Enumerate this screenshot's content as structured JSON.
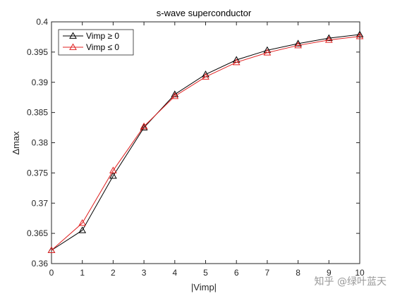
{
  "chart_data": {
    "type": "line",
    "title": "s-wave superconductor",
    "xlabel": "|Vimp|",
    "ylabel": "Δmax",
    "xlim": [
      0,
      10
    ],
    "ylim": [
      0.36,
      0.4
    ],
    "xticks": [
      0,
      1,
      2,
      3,
      4,
      5,
      6,
      7,
      8,
      9,
      10
    ],
    "yticks": [
      0.36,
      0.365,
      0.37,
      0.375,
      0.38,
      0.385,
      0.39,
      0.395,
      0.4
    ],
    "ytick_labels": [
      "0.36",
      "0.365",
      "0.37",
      "0.375",
      "0.38",
      "0.385",
      "0.39",
      "0.395",
      "0.4"
    ],
    "x": [
      0,
      1,
      2,
      3,
      4,
      5,
      6,
      7,
      8,
      9,
      10
    ],
    "series": [
      {
        "name": "Vimp ≥ 0",
        "color": "#000000",
        "marker": "triangle-open",
        "values": [
          0.3622,
          0.3655,
          0.3745,
          0.3825,
          0.388,
          0.3913,
          0.3937,
          0.3953,
          0.3964,
          0.3973,
          0.3979
        ]
      },
      {
        "name": "Vimp ≤ 0",
        "color": "#e02020",
        "marker": "triangle-open",
        "values": [
          0.3622,
          0.3667,
          0.3754,
          0.3827,
          0.3877,
          0.3909,
          0.3933,
          0.3949,
          0.3961,
          0.397,
          0.3976
        ]
      }
    ],
    "grid": false,
    "legend_position": "top-left"
  },
  "watermark": "知乎 @绿叶蓝天"
}
